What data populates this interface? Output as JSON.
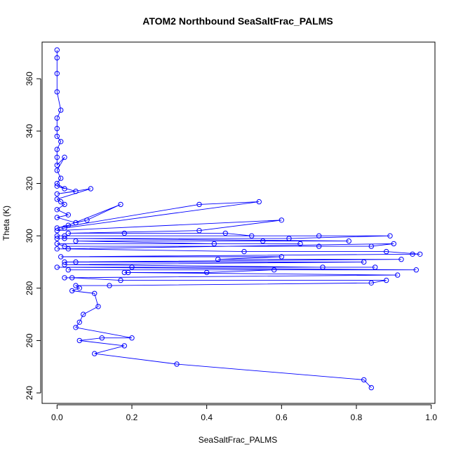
{
  "chart_data": {
    "type": "scatter",
    "title": "ATOM2 Northbound SeaSaltFrac_PALMS",
    "xlabel": "SeaSaltFrac_PALMS",
    "ylabel": "Theta (K)",
    "xlim": [
      -0.04,
      1.01
    ],
    "ylim": [
      236,
      374
    ],
    "xticks": [
      0.0,
      0.2,
      0.4,
      0.6,
      0.8,
      1.0
    ],
    "xtick_labels": [
      "0.0",
      "0.2",
      "0.4",
      "0.6",
      "0.8",
      "1.0"
    ],
    "yticks": [
      240,
      260,
      280,
      300,
      320,
      340,
      360
    ],
    "ytick_labels": [
      "240",
      "260",
      "280",
      "300",
      "320",
      "340",
      "360"
    ],
    "grid": false,
    "color": "#0000ff",
    "series": [
      {
        "name": "SeaSaltFrac_PALMS",
        "x": [
          0.0,
          0.0,
          0.0,
          0.0,
          0.01,
          0.0,
          0.0,
          0.0,
          0.01,
          0.0,
          0.0,
          0.0,
          0.02,
          0.0,
          0.01,
          0.0,
          0.02,
          0.0,
          0.05,
          0.0,
          0.09,
          0.0,
          0.01,
          0.02,
          0.0,
          0.03,
          0.0,
          0.05,
          0.08,
          0.17,
          0.03,
          0.0,
          0.38,
          0.54,
          0.02,
          0.0,
          0.6,
          0.38,
          0.03,
          0.18,
          0.45,
          0.52,
          0.02,
          0.0,
          0.7,
          0.89,
          0.62,
          0.0,
          0.02,
          0.78,
          0.55,
          0.05,
          0.42,
          0.65,
          0.0,
          0.02,
          0.7,
          0.84,
          0.9,
          0.0,
          0.03,
          0.5,
          0.88,
          0.97,
          0.95,
          0.01,
          0.6,
          0.43,
          0.92,
          0.02,
          0.05,
          0.82,
          0.02,
          0.71,
          0.85,
          0.2,
          0.0,
          0.96,
          0.03,
          0.58,
          0.4,
          0.19,
          0.18,
          0.91,
          0.02,
          0.04,
          0.17,
          0.88,
          0.84,
          0.14,
          0.05,
          0.06,
          0.04,
          0.1,
          0.11,
          0.07,
          0.06,
          0.05,
          0.2,
          0.12,
          0.06,
          0.18,
          0.1,
          0.32,
          0.82,
          0.84
        ],
        "y": [
          371,
          368,
          362,
          355,
          348,
          345,
          341,
          338,
          336,
          333,
          330,
          327,
          330,
          325,
          322,
          320,
          318,
          319,
          317,
          316,
          318,
          314,
          313,
          312,
          310,
          308,
          307,
          305,
          306,
          312,
          304,
          303,
          312,
          313,
          303,
          302,
          306,
          302,
          301,
          301,
          301,
          300,
          300,
          300,
          300,
          300,
          299,
          299,
          299,
          298,
          298,
          298,
          297,
          297,
          297,
          296,
          296,
          296,
          297,
          295,
          295,
          294,
          294,
          293,
          293,
          292,
          292,
          291,
          291,
          290,
          290,
          290,
          289,
          288,
          288,
          288,
          288,
          287,
          287,
          287,
          286,
          286,
          286,
          285,
          284,
          284,
          283,
          283,
          282,
          281,
          281,
          280,
          279,
          278,
          273,
          270,
          267,
          265,
          261,
          261,
          260,
          258,
          255,
          251,
          245,
          242
        ]
      }
    ]
  }
}
